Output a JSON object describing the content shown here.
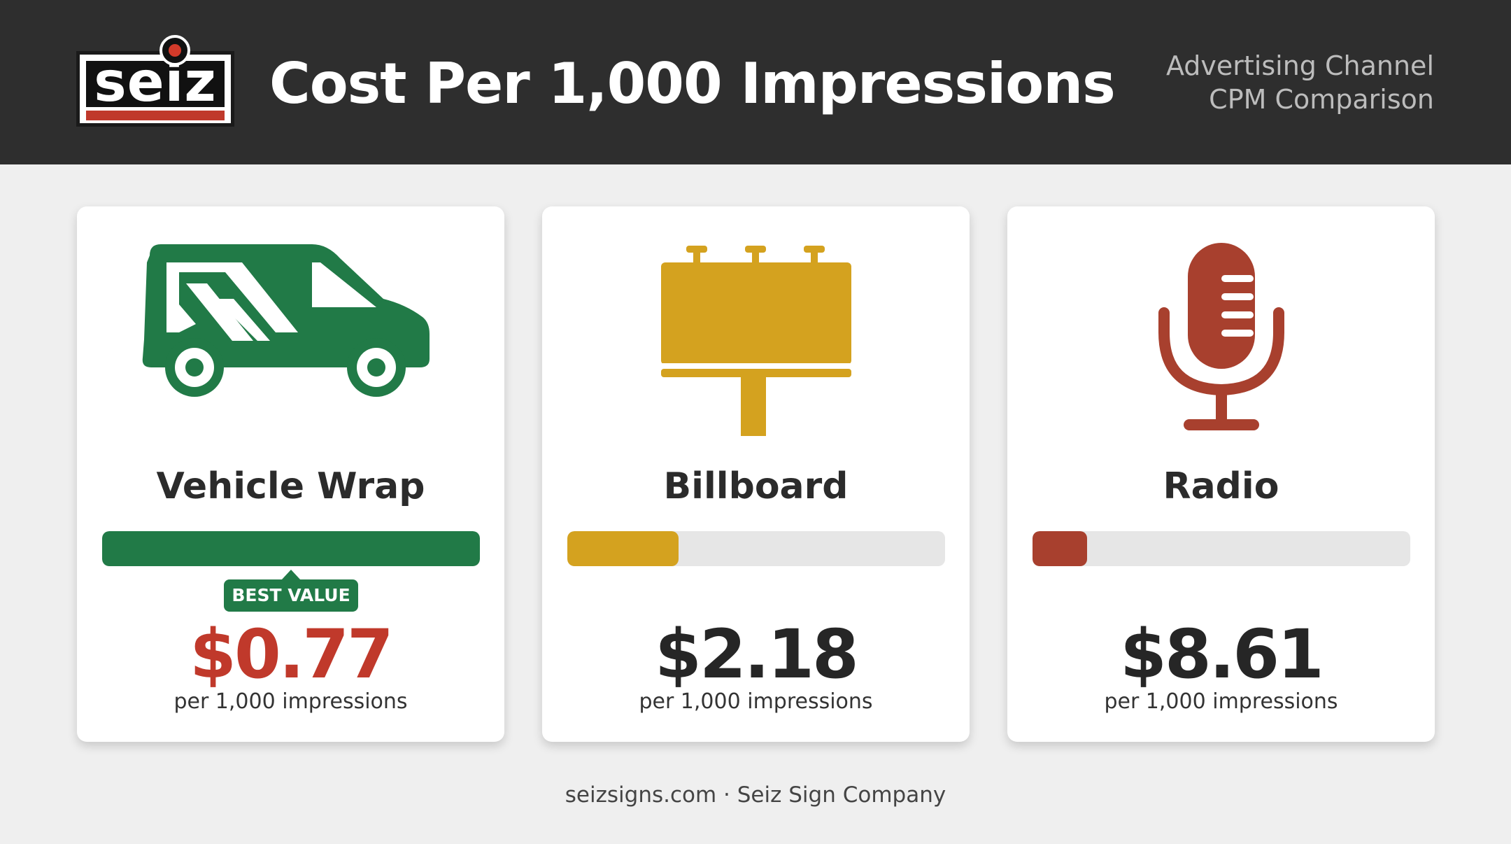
{
  "header": {
    "logo_text": "seiz",
    "title": "Cost Per 1,000 Impressions",
    "subtitle_line1": "Advertising Channel",
    "subtitle_line2": "CPM Comparison"
  },
  "colors": {
    "header_bg": "#2e2e2e",
    "vehicle_wrap": "#217a47",
    "billboard": "#d4a21f",
    "radio": "#a8402e",
    "best_price": "#c0392b"
  },
  "cards": [
    {
      "icon": "van-icon",
      "label": "Vehicle Wrap",
      "bar_fill_fraction": 1.0,
      "badge": "BEST VALUE",
      "price": "$0.77",
      "per": "per 1,000 impressions"
    },
    {
      "icon": "billboard-icon",
      "label": "Billboard",
      "bar_fill_fraction": 0.295,
      "price": "$2.18",
      "per": "per 1,000 impressions"
    },
    {
      "icon": "microphone-icon",
      "label": "Radio",
      "bar_fill_fraction": 0.145,
      "price": "$8.61",
      "per": "per 1,000 impressions"
    }
  ],
  "footer": "seizsigns.com · Seiz Sign Company"
}
